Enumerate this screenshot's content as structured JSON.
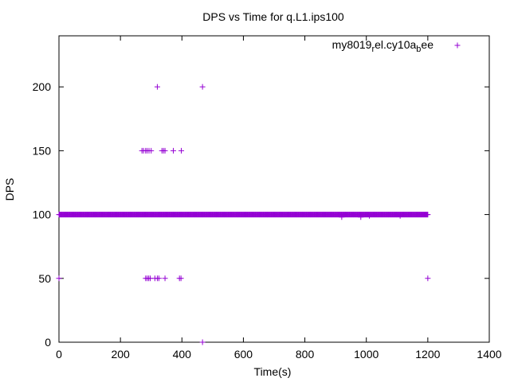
{
  "chart_data": {
    "type": "scatter",
    "title": "DPS vs Time for q.L1.ips100",
    "xlabel": "Time(s)",
    "ylabel": "DPS",
    "xlim": [
      0,
      1400
    ],
    "ylim": [
      0,
      240
    ],
    "xticks": [
      0,
      200,
      400,
      600,
      800,
      1000,
      1200,
      1400
    ],
    "yticks": [
      0,
      50,
      100,
      150,
      200
    ],
    "grid": false,
    "legend_position": "top-right",
    "marker": "+",
    "color": "#9400D3",
    "series": [
      {
        "name": "my8019_rel.cy10a_bee",
        "dense_runs": [
          {
            "y": 100,
            "x_from": 0,
            "x_to": 1200,
            "step": 2
          }
        ],
        "points": [
          [
            0,
            50
          ],
          [
            270,
            150
          ],
          [
            275,
            150
          ],
          [
            282,
            150
          ],
          [
            287,
            150
          ],
          [
            293,
            150
          ],
          [
            300,
            150
          ],
          [
            335,
            150
          ],
          [
            340,
            150
          ],
          [
            345,
            150
          ],
          [
            372,
            150
          ],
          [
            398,
            150
          ],
          [
            320,
            200
          ],
          [
            467,
            200
          ],
          [
            282,
            50
          ],
          [
            287,
            50
          ],
          [
            292,
            50
          ],
          [
            297,
            50
          ],
          [
            312,
            50
          ],
          [
            320,
            50
          ],
          [
            325,
            50
          ],
          [
            345,
            50
          ],
          [
            392,
            50
          ],
          [
            397,
            50
          ],
          [
            1200,
            50
          ],
          [
            467,
            0
          ],
          [
            920,
            98
          ],
          [
            982,
            98
          ],
          [
            1010,
            99
          ],
          [
            1110,
            99
          ]
        ]
      }
    ]
  }
}
